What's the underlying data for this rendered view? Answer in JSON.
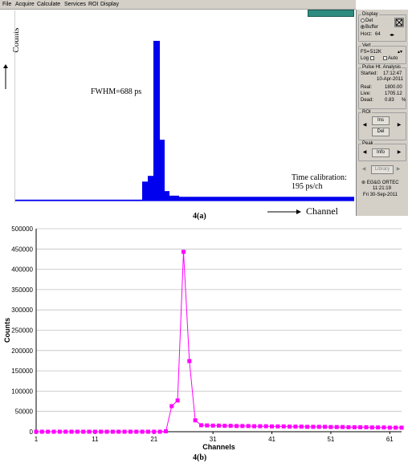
{
  "panel_a": {
    "menu": [
      "File",
      "Acquire",
      "Calculate",
      "Services",
      "ROI",
      "Display"
    ],
    "y_axis_label": "Counts",
    "fwhm_text": "FWHM=688 ps",
    "calibration_line1": "Time calibration:",
    "calibration_line2": "195 ps/ch",
    "x_axis_label": "Channel",
    "caption": "4(a)",
    "side": {
      "display_title": "Display",
      "display_opt1": "Det",
      "display_opt2": "Buffer",
      "horz_label": "Horz:",
      "horz_value": "64",
      "vert_title": "Vert",
      "fs_label": "FS=",
      "fs_value": "512K",
      "log_label": "Log",
      "auto_label": "Auto",
      "pha_title": "Pulse Ht. Analysis",
      "started_label": "Started:",
      "started_time": "17:12:47",
      "started_date": "10-Apr-2011",
      "real_label": "Real:",
      "real_value": "1800.00",
      "live_label": "Live:",
      "live_value": "1705.12",
      "dead_label": "Dead:",
      "dead_value": "0.83",
      "dead_unit": "%",
      "roi_title": "ROI",
      "ins_label": "Ins",
      "del_label": "Del",
      "peak_title": "Peak",
      "info_label": "Info",
      "library_label": "Library",
      "brand": "EG&G ORTEC",
      "clock_time": "11:21:19",
      "clock_date": "Fri  30-Sep-2011"
    }
  },
  "panel_b": {
    "caption": "4(b)",
    "colors": {
      "series": "#ff00ff",
      "axis": "#000000",
      "grid": "#c0c0c0"
    }
  },
  "chart_data": [
    {
      "type": "bar",
      "title": "",
      "xlabel": "Channel",
      "ylabel": "Counts",
      "annotations": [
        "FWHM=688 ps",
        "Time calibration: 195 ps/ch"
      ],
      "description_values": {
        "peak_relative_height": 0.84,
        "shoulder_relative_height": 0.32,
        "pre_rise_relative_height": [
          0.1,
          0.13
        ],
        "tail_relative_height": 0.02
      }
    },
    {
      "type": "line",
      "title": "",
      "xlabel": "Channels",
      "ylabel": "Counts",
      "xlim": [
        1,
        63
      ],
      "ylim": [
        0,
        500000
      ],
      "x_ticks": [
        1,
        11,
        21,
        31,
        41,
        51,
        61
      ],
      "y_ticks": [
        0,
        50000,
        100000,
        150000,
        200000,
        250000,
        300000,
        350000,
        400000,
        450000,
        500000
      ],
      "grid": true,
      "marker": "square",
      "x": [
        1,
        2,
        3,
        4,
        5,
        6,
        7,
        8,
        9,
        10,
        11,
        12,
        13,
        14,
        15,
        16,
        17,
        18,
        19,
        20,
        21,
        22,
        23,
        24,
        25,
        26,
        27,
        28,
        29,
        30,
        31,
        32,
        33,
        34,
        35,
        36,
        37,
        38,
        39,
        40,
        41,
        42,
        43,
        44,
        45,
        46,
        47,
        48,
        49,
        50,
        51,
        52,
        53,
        54,
        55,
        56,
        57,
        58,
        59,
        60,
        61,
        62,
        63
      ],
      "series": [
        {
          "values": [
            0,
            0,
            0,
            0,
            0,
            0,
            0,
            0,
            0,
            0,
            0,
            0,
            0,
            0,
            0,
            0,
            0,
            0,
            0,
            0,
            0,
            0,
            1000,
            63000,
            77000,
            443000,
            174000,
            28000,
            16000,
            15500,
            15000,
            15000,
            14500,
            14500,
            14000,
            14000,
            14000,
            13500,
            13500,
            13500,
            13000,
            13000,
            13000,
            12500,
            12500,
            12500,
            12000,
            12000,
            12000,
            12000,
            11500,
            11500,
            11500,
            11000,
            11000,
            11000,
            11000,
            10500,
            10500,
            10500,
            10000,
            10000,
            10000
          ]
        }
      ]
    }
  ]
}
